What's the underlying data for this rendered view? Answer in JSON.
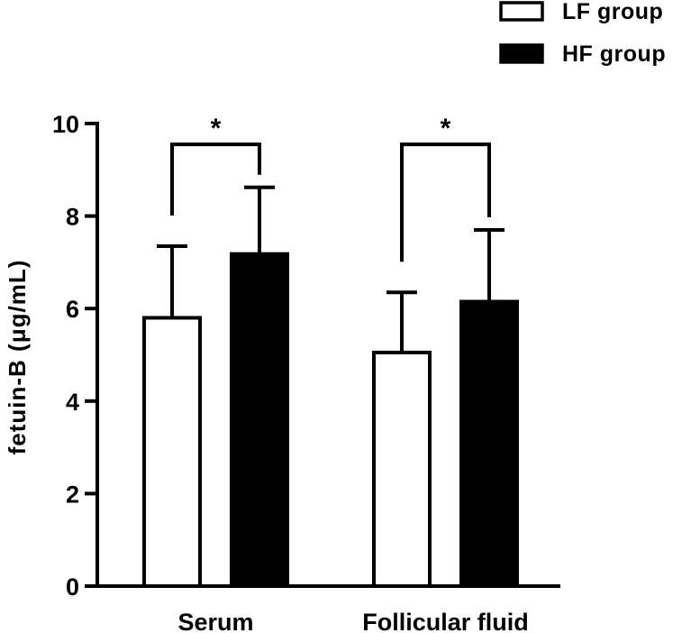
{
  "chart_data": {
    "type": "bar",
    "ylabel": "fetuin-B (μg/mL)",
    "xlabel": "",
    "ylim": [
      0,
      10
    ],
    "yticks": [
      0,
      2,
      4,
      6,
      8,
      10
    ],
    "categories": [
      "Serum",
      "Follicular fluid"
    ],
    "series": [
      {
        "name": "LF group",
        "values": [
          5.8,
          5.05
        ],
        "errors": [
          1.55,
          1.3
        ],
        "color": "#ffffff"
      },
      {
        "name": "HF group",
        "values": [
          7.18,
          6.15
        ],
        "errors": [
          1.44,
          1.55
        ],
        "color": "#000000"
      }
    ],
    "significance": [
      {
        "category": "Serum",
        "label": "*",
        "bracket_y": 9.55
      },
      {
        "category": "Follicular fluid",
        "label": "*",
        "bracket_y": 9.55
      }
    ],
    "legend_position": "top-right",
    "grid": false
  }
}
